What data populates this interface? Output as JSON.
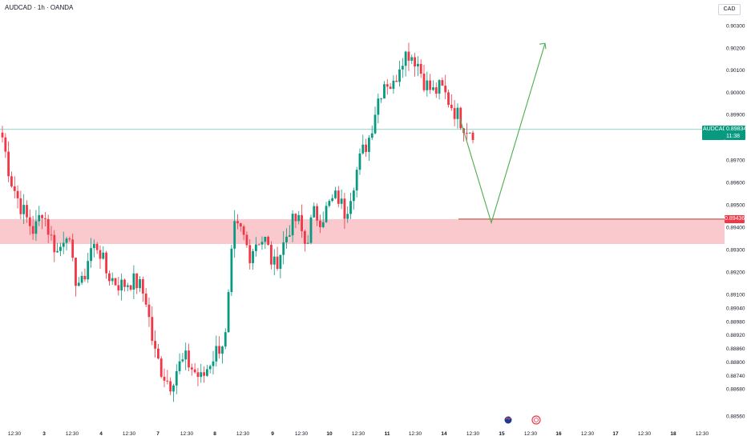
{
  "header": {
    "title": "AUDCAD · 1h · OANDA",
    "currency_button": "CAD"
  },
  "last_price_tag": {
    "symbol": "AUDCAD",
    "price": "0.89834",
    "countdown": "11:38",
    "color": "#089981"
  },
  "zone_level_tag": {
    "price": "0.89436",
    "color": "#f23645"
  },
  "colors": {
    "up": "#089981",
    "down": "#f23645",
    "zone_fill": "#f7b7bd",
    "projection": "#4caf50"
  },
  "events": [
    {
      "icon": "australia-flag-icon",
      "x_label": "15"
    },
    {
      "icon": "earnings-event-icon",
      "x_label": "12:30"
    }
  ],
  "chart_data": {
    "type": "candlestick",
    "title": "AUDCAD · 1h · OANDA",
    "price_ticks": [
      "0.90300",
      "0.90200",
      "0.90100",
      "0.90000",
      "0.89900",
      "0.89700",
      "0.89600",
      "0.89500",
      "0.89400",
      "0.89300",
      "0.89200",
      "0.89100",
      "0.89040",
      "0.88980",
      "0.88920",
      "0.88860",
      "0.88800",
      "0.88740",
      "0.88680",
      "0.88560"
    ],
    "x_ticks": [
      "12:30",
      "3",
      "12:30",
      "4",
      "12:30",
      "7",
      "12:30",
      "8",
      "12:30",
      "9",
      "12:30",
      "10",
      "12:30",
      "11",
      "12:30",
      "14",
      "12:30",
      "15",
      "12:30",
      "16",
      "12:30",
      "17",
      "12:30",
      "18",
      "12:30"
    ],
    "close_waypoints": [
      0.898,
      0.8962,
      0.8952,
      0.8944,
      0.8938,
      0.8948,
      0.8936,
      0.8928,
      0.894,
      0.8918,
      0.8914,
      0.893,
      0.8932,
      0.892,
      0.8916,
      0.8914,
      0.8916,
      0.8915,
      0.8908,
      0.8885,
      0.8876,
      0.887,
      0.8878,
      0.8881,
      0.8876,
      0.8872,
      0.888,
      0.8886,
      0.8891,
      0.8939,
      0.8938,
      0.8928,
      0.8935,
      0.8934,
      0.8922,
      0.893,
      0.894,
      0.8944,
      0.8932,
      0.8946,
      0.8944,
      0.895,
      0.8954,
      0.8946,
      0.896,
      0.8972,
      0.898,
      0.8996,
      0.9006,
      0.9002,
      0.9016,
      0.9018,
      0.9014,
      0.9004,
      0.9,
      0.9002,
      0.8996,
      0.899,
      0.8985,
      0.8983
    ],
    "demand_zone": {
      "top": 0.89436,
      "bottom": 0.89325
    },
    "last_price": 0.89834,
    "projection_path": [
      {
        "x_label": "14",
        "price": 0.8988
      },
      {
        "x_label": "15",
        "price": 0.8942
      },
      {
        "x_label": "15 12:30",
        "price": 0.9022
      }
    ],
    "grid": false
  }
}
